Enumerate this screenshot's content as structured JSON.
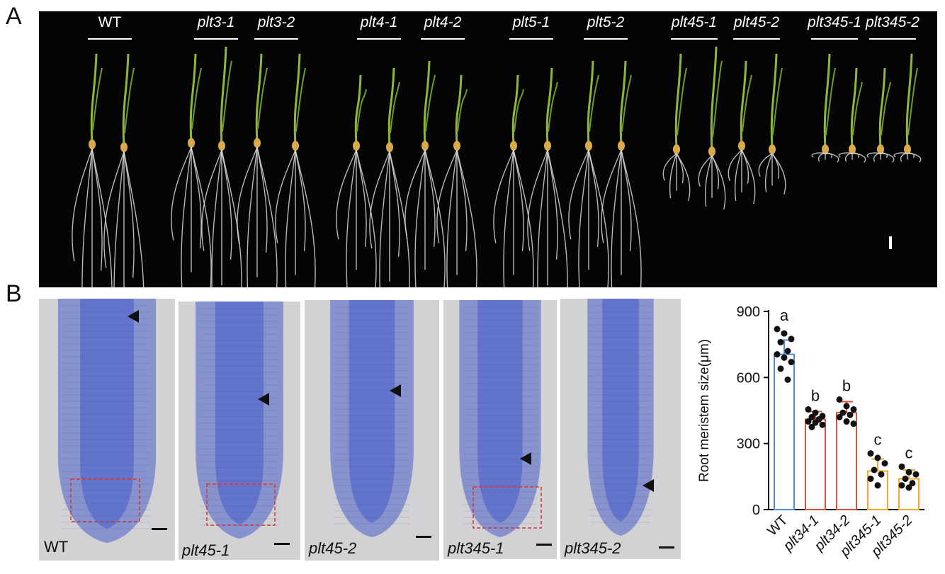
{
  "figure": {
    "panel_a_letter": "A",
    "panel_b_letter": "B"
  },
  "panel_a": {
    "genotypes": [
      "WT",
      "plt3-1",
      "plt3-2",
      "plt4-1",
      "plt4-2",
      "plt5-1",
      "plt5-2",
      "plt45-1",
      "plt45-2",
      "plt345-1",
      "plt345-2"
    ],
    "background_color": "#050505",
    "shoot_color": "#8fb83a",
    "root_color": "#d9d9d9"
  },
  "panel_b_images": {
    "labels": [
      "WT",
      "plt45-1",
      "plt45-2",
      "plt345-1",
      "plt345-2"
    ],
    "stain_color": "#4a5fc9",
    "box_color": "#d9332b"
  },
  "chart_data": {
    "type": "bar",
    "categories": [
      "WT",
      "plt34-1",
      "plt34-2",
      "plt345-1",
      "plt345-2"
    ],
    "values": [
      705,
      410,
      440,
      175,
      140
    ],
    "errors": [
      65,
      35,
      50,
      55,
      40
    ],
    "significance": [
      "a",
      "b",
      "b",
      "c",
      "c"
    ],
    "points": [
      [
        820,
        800,
        775,
        760,
        720,
        705,
        690,
        670,
        640,
        590
      ],
      [
        455,
        440,
        425,
        420,
        410,
        400,
        395,
        385,
        375
      ],
      [
        500,
        470,
        455,
        440,
        430,
        420,
        400,
        390
      ],
      [
        255,
        235,
        210,
        180,
        160,
        140,
        110
      ],
      [
        195,
        170,
        160,
        140,
        120,
        110,
        100
      ]
    ],
    "colors": [
      "#4a90d9",
      "#d9533b",
      "#d9533b",
      "#f0a830",
      "#f0a830"
    ],
    "ylabel": "Root meristem size(μm)",
    "ylim": [
      0,
      900
    ],
    "yticks": [
      0,
      300,
      600,
      900
    ]
  }
}
